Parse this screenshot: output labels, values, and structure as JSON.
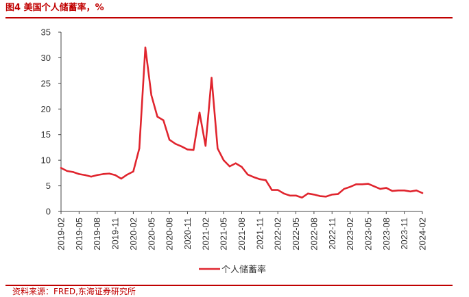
{
  "header": {
    "title": "图4  美国个人储蓄率，%"
  },
  "footer": {
    "source": "资料来源：FRED,东海证券研究所"
  },
  "colors": {
    "accent": "#c00000",
    "series_line": "#e0252e",
    "axis": "#444444"
  },
  "chart_data": {
    "type": "line",
    "title": "图4  美国个人储蓄率，%",
    "xlabel": "",
    "ylabel": "",
    "ylim": [
      0,
      35
    ],
    "yticks": [
      0,
      5,
      10,
      15,
      20,
      25,
      30,
      35
    ],
    "grid": false,
    "legend_position": "bottom-center",
    "x": [
      "2019-02",
      "2019-03",
      "2019-04",
      "2019-05",
      "2019-06",
      "2019-07",
      "2019-08",
      "2019-09",
      "2019-10",
      "2019-11",
      "2019-12",
      "2020-01",
      "2020-02",
      "2020-03",
      "2020-04",
      "2020-05",
      "2020-06",
      "2020-07",
      "2020-08",
      "2020-09",
      "2020-10",
      "2020-11",
      "2020-12",
      "2021-01",
      "2021-02",
      "2021-03",
      "2021-04",
      "2021-05",
      "2021-06",
      "2021-07",
      "2021-08",
      "2021-09",
      "2021-10",
      "2021-11",
      "2021-12",
      "2022-01",
      "2022-02",
      "2022-03",
      "2022-04",
      "2022-05",
      "2022-06",
      "2022-07",
      "2022-08",
      "2022-09",
      "2022-10",
      "2022-11",
      "2022-12",
      "2023-01",
      "2023-02",
      "2023-03",
      "2023-04",
      "2023-05",
      "2023-06",
      "2023-07",
      "2023-08",
      "2023-09",
      "2023-10",
      "2023-11",
      "2023-12",
      "2024-01",
      "2024-02"
    ],
    "x_tick_labels": [
      "2019-02",
      "2019-05",
      "2019-08",
      "2019-11",
      "2020-02",
      "2020-05",
      "2020-08",
      "2020-11",
      "2021-02",
      "2021-05",
      "2021-08",
      "2021-11",
      "2022-02",
      "2022-05",
      "2022-08",
      "2022-11",
      "2023-02",
      "2023-05",
      "2023-08",
      "2023-11",
      "2024-02"
    ],
    "series": [
      {
        "name": "个人储蓄率",
        "values": [
          8.5,
          7.9,
          7.7,
          7.3,
          7.1,
          6.8,
          7.1,
          7.3,
          7.4,
          7.1,
          6.4,
          7.2,
          7.8,
          12.3,
          32.0,
          22.7,
          18.5,
          17.8,
          14.0,
          13.2,
          12.7,
          12.1,
          12.0,
          19.3,
          12.8,
          26.1,
          12.3,
          10.0,
          8.8,
          9.4,
          8.7,
          7.2,
          6.7,
          6.3,
          6.1,
          4.2,
          4.2,
          3.5,
          3.1,
          3.1,
          2.7,
          3.5,
          3.3,
          3.0,
          2.9,
          3.3,
          3.4,
          4.4,
          4.8,
          5.3,
          5.3,
          5.4,
          4.9,
          4.4,
          4.6,
          4.0,
          4.1,
          4.1,
          3.9,
          4.1,
          3.6
        ]
      }
    ]
  }
}
